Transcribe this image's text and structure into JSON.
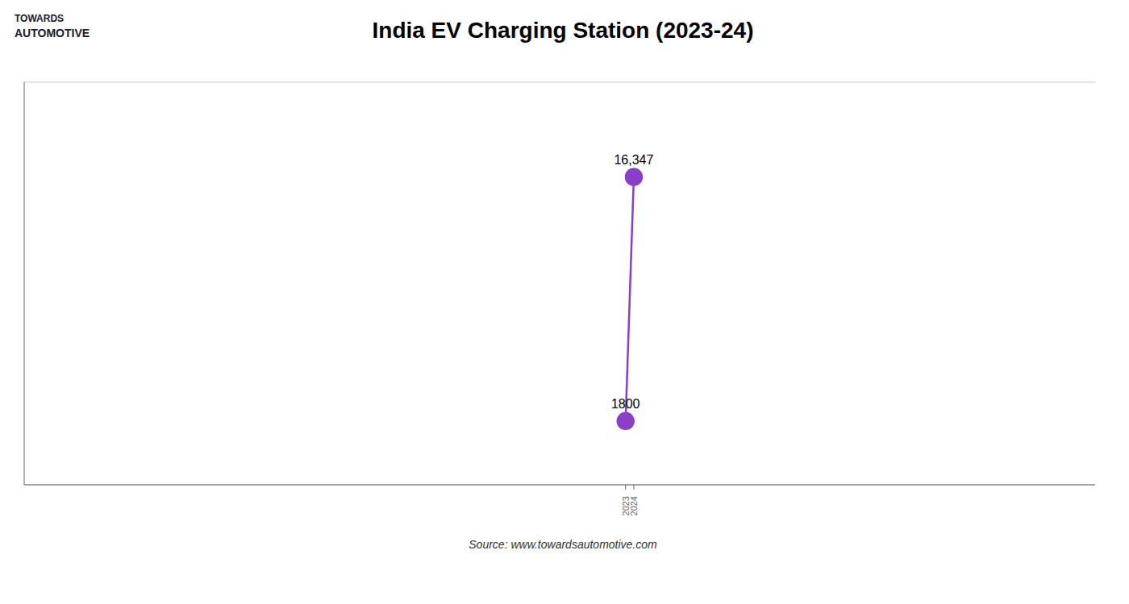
{
  "chart_data": {
    "type": "line",
    "title": "India EV Charging Station (2023-24)",
    "x": [
      2023,
      2024
    ],
    "values": [
      1800,
      16347
    ],
    "value_labels": [
      "1800",
      "16,347"
    ],
    "data_labels": true,
    "color": "#8B3FC8",
    "marker": "circle",
    "xlim": [
      1950,
      2080
    ],
    "xticks": [
      2023,
      2024
    ],
    "ylim": [
      -2000,
      22000
    ],
    "yticks": [
      5000,
      10000,
      15000,
      20000
    ],
    "grid": true,
    "tick_labels": "x",
    "annotations": [
      "TOWARDS",
      "AUTOMOTIVE",
      "Source: www.towardsautomotive.com"
    ]
  }
}
